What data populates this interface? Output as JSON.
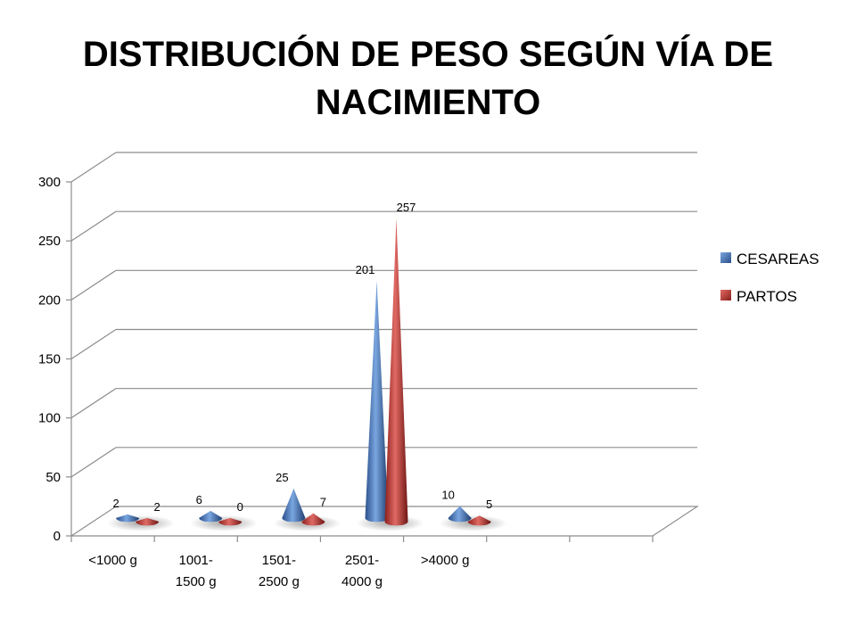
{
  "slide": {
    "title_line1": "DISTRIBUCIÓN DE PESO SEGÚN VÍA DE",
    "title_line2": "NACIMIENTO"
  },
  "chart_data": {
    "type": "bar",
    "subtype": "3d-cone",
    "title": "DISTRIBUCIÓN DE PESO SEGÚN VÍA DE NACIMIENTO",
    "categories": [
      [
        "<1000 g"
      ],
      [
        "1001-",
        "1500 g"
      ],
      [
        "1501-",
        "2500 g"
      ],
      [
        "2501-",
        "4000 g"
      ],
      [
        ">4000 g"
      ]
    ],
    "series": [
      {
        "name": "CESAREAS",
        "values": [
          2,
          6,
          25,
          201,
          10
        ],
        "color": "#4F81BD"
      },
      {
        "name": "PARTOS",
        "values": [
          2,
          0,
          7,
          257,
          5
        ],
        "color": "#C0504D"
      }
    ],
    "ylim": [
      0,
      300
    ],
    "yticks": [
      0,
      50,
      100,
      150,
      200,
      250,
      300
    ],
    "grid": true,
    "legend": "right",
    "data_labels": true
  }
}
